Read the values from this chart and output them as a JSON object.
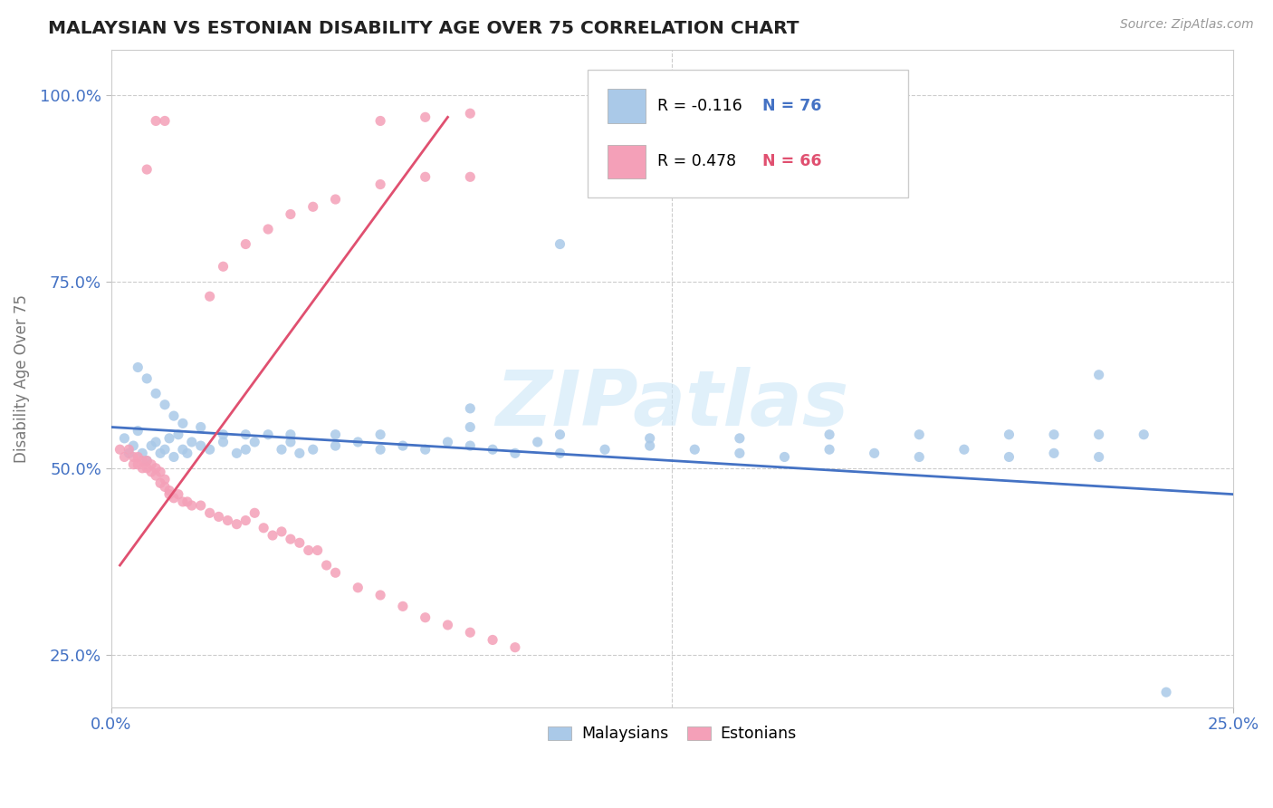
{
  "title": "MALAYSIAN VS ESTONIAN DISABILITY AGE OVER 75 CORRELATION CHART",
  "source": "Source: ZipAtlas.com",
  "ylabel_label": "Disability Age Over 75",
  "legend_label_blue": "Malaysians",
  "legend_label_pink": "Estonians",
  "r_blue": -0.116,
  "n_blue": 76,
  "r_pink": 0.478,
  "n_pink": 66,
  "blue_scatter_color": "#aac9e8",
  "pink_scatter_color": "#f4a0b8",
  "blue_line_color": "#4472c4",
  "pink_line_color": "#e05070",
  "tick_label_color": "#4472c4",
  "ylabel_color": "#777777",
  "title_color": "#222222",
  "source_color": "#999999",
  "watermark_text": "ZIPatlas",
  "watermark_color": "#d0e8f8",
  "grid_color": "#cccccc",
  "xmin": 0.0,
  "xmax": 0.25,
  "ymin": 0.18,
  "ymax": 1.06,
  "xtick_labels": [
    "0.0%",
    "25.0%"
  ],
  "ytick_labels": [
    "25.0%",
    "50.0%",
    "75.0%",
    "100.0%"
  ],
  "blue_x": [
    0.003,
    0.004,
    0.005,
    0.006,
    0.007,
    0.008,
    0.009,
    0.01,
    0.011,
    0.012,
    0.013,
    0.014,
    0.015,
    0.016,
    0.017,
    0.018,
    0.02,
    0.022,
    0.025,
    0.028,
    0.03,
    0.032,
    0.035,
    0.038,
    0.04,
    0.042,
    0.045,
    0.05,
    0.055,
    0.06,
    0.065,
    0.07,
    0.075,
    0.08,
    0.085,
    0.09,
    0.095,
    0.1,
    0.11,
    0.12,
    0.13,
    0.14,
    0.15,
    0.16,
    0.17,
    0.18,
    0.19,
    0.2,
    0.21,
    0.22,
    0.006,
    0.008,
    0.01,
    0.012,
    0.014,
    0.016,
    0.02,
    0.025,
    0.03,
    0.04,
    0.05,
    0.06,
    0.08,
    0.1,
    0.12,
    0.14,
    0.16,
    0.18,
    0.2,
    0.21,
    0.22,
    0.23,
    0.08,
    0.1,
    0.22,
    0.235
  ],
  "blue_y": [
    0.54,
    0.52,
    0.53,
    0.55,
    0.52,
    0.51,
    0.53,
    0.535,
    0.52,
    0.525,
    0.54,
    0.515,
    0.545,
    0.525,
    0.52,
    0.535,
    0.53,
    0.525,
    0.535,
    0.52,
    0.525,
    0.535,
    0.545,
    0.525,
    0.535,
    0.52,
    0.525,
    0.53,
    0.535,
    0.525,
    0.53,
    0.525,
    0.535,
    0.53,
    0.525,
    0.52,
    0.535,
    0.52,
    0.525,
    0.53,
    0.525,
    0.52,
    0.515,
    0.525,
    0.52,
    0.515,
    0.525,
    0.515,
    0.52,
    0.515,
    0.635,
    0.62,
    0.6,
    0.585,
    0.57,
    0.56,
    0.555,
    0.545,
    0.545,
    0.545,
    0.545,
    0.545,
    0.555,
    0.545,
    0.54,
    0.54,
    0.545,
    0.545,
    0.545,
    0.545,
    0.545,
    0.545,
    0.58,
    0.8,
    0.625,
    0.2
  ],
  "pink_x": [
    0.002,
    0.003,
    0.004,
    0.005,
    0.005,
    0.006,
    0.006,
    0.007,
    0.007,
    0.008,
    0.008,
    0.009,
    0.009,
    0.01,
    0.01,
    0.011,
    0.011,
    0.012,
    0.012,
    0.013,
    0.013,
    0.014,
    0.015,
    0.016,
    0.017,
    0.018,
    0.02,
    0.022,
    0.024,
    0.026,
    0.028,
    0.03,
    0.032,
    0.034,
    0.036,
    0.038,
    0.04,
    0.042,
    0.044,
    0.046,
    0.048,
    0.05,
    0.055,
    0.06,
    0.065,
    0.07,
    0.075,
    0.08,
    0.085,
    0.09,
    0.022,
    0.025,
    0.03,
    0.035,
    0.04,
    0.045,
    0.05,
    0.06,
    0.07,
    0.08,
    0.008,
    0.01,
    0.012,
    0.06,
    0.07,
    0.08
  ],
  "pink_y": [
    0.525,
    0.515,
    0.525,
    0.515,
    0.505,
    0.515,
    0.505,
    0.51,
    0.5,
    0.51,
    0.5,
    0.505,
    0.495,
    0.5,
    0.49,
    0.48,
    0.495,
    0.485,
    0.475,
    0.47,
    0.465,
    0.46,
    0.465,
    0.455,
    0.455,
    0.45,
    0.45,
    0.44,
    0.435,
    0.43,
    0.425,
    0.43,
    0.44,
    0.42,
    0.41,
    0.415,
    0.405,
    0.4,
    0.39,
    0.39,
    0.37,
    0.36,
    0.34,
    0.33,
    0.315,
    0.3,
    0.29,
    0.28,
    0.27,
    0.26,
    0.73,
    0.77,
    0.8,
    0.82,
    0.84,
    0.85,
    0.86,
    0.88,
    0.89,
    0.89,
    0.9,
    0.965,
    0.965,
    0.965,
    0.97,
    0.975
  ],
  "pink_trendline_x": [
    0.002,
    0.075
  ],
  "pink_trendline_y": [
    0.37,
    0.97
  ],
  "blue_trendline_x": [
    0.0,
    0.25
  ],
  "blue_trendline_y": [
    0.555,
    0.465
  ]
}
